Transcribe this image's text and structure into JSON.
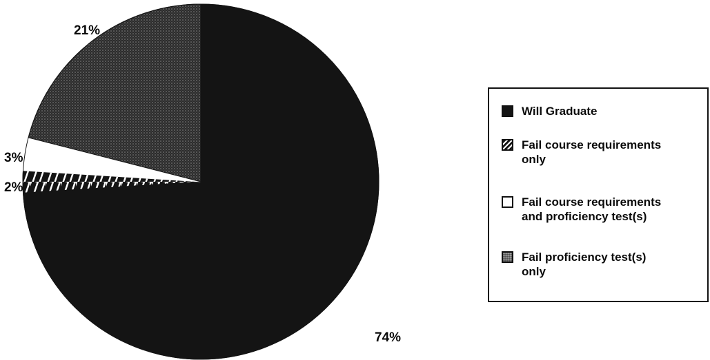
{
  "chart_data": {
    "type": "pie",
    "slices": [
      {
        "label": "Will Graduate",
        "value": 74,
        "label_text": "74%",
        "fill": "solid",
        "color": "#141414"
      },
      {
        "label": "Fail course requirements only",
        "value": 2,
        "label_text": "2%",
        "fill": "hatch",
        "color": "#141414"
      },
      {
        "label": "Fail course requirements and proficiency test(s)",
        "value": 3,
        "label_text": "3%",
        "fill": "white",
        "color": "#ffffff"
      },
      {
        "label": "Fail proficiency test(s) only",
        "value": 21,
        "label_text": "21%",
        "fill": "dots",
        "color": "#3a3a3a"
      }
    ],
    "legend": {
      "placement": "right",
      "items": [
        {
          "label_line1": "Will Graduate",
          "label_line2": "",
          "fill": "solid"
        },
        {
          "label_line1": "Fail course requirements",
          "label_line2": "only",
          "fill": "hatch"
        },
        {
          "label_line1": "Fail course requirements",
          "label_line2": "and proficiency test(s)",
          "fill": "white"
        },
        {
          "label_line1": "Fail proficiency test(s)",
          "label_line2": "only",
          "fill": "dots"
        }
      ]
    }
  }
}
